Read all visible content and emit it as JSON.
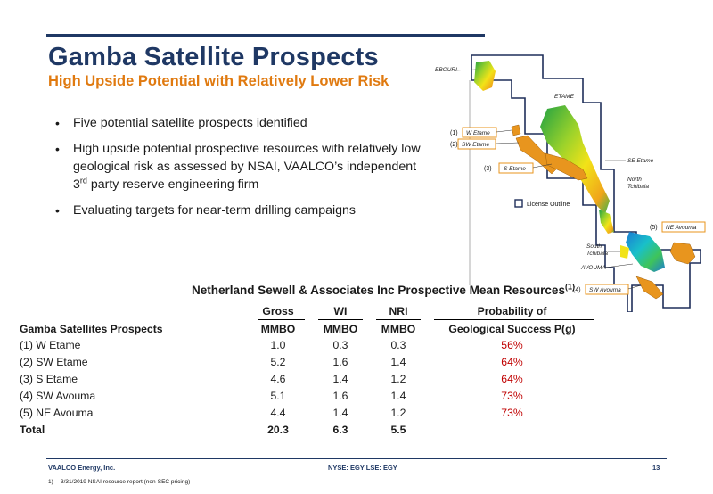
{
  "header": {
    "title": "Gamba Satellite Prospects",
    "subtitle": "High Upside Potential with Relatively Lower Risk"
  },
  "bullets": [
    "Five potential satellite prospects identified",
    "High upside potential prospective resources with relatively low geological risk as assessed by NSAI, VAALCO’s independent 3",
    "rd",
    " party reserve engineering firm",
    "Evaluating targets for near-term drilling campaigns"
  ],
  "map": {
    "labels": {
      "ebouri": "EBOURI",
      "etame": "ETAME",
      "se_etame": "SE Etame",
      "north_tchibala_1": "North",
      "north_tchibala_2": "Tchibala",
      "license_outline": "License Outline",
      "south_tchibala_1": "South",
      "south_tchibala_2": "Tchibala",
      "avouma": "AVOUMA",
      "w_etame": "W Etame",
      "sw_etame": "SW Etame",
      "s_etame": "S Etame",
      "ne_avouma": "NE Avouma",
      "sw_avouma": "SW Avouma",
      "n1": "(1)",
      "n2": "(2)",
      "n3": "(3)",
      "n4": "(4)",
      "n5": "(5)"
    },
    "colors": {
      "license_outline": "#1f2f5a",
      "prospect_fill": "#e8951e",
      "box_border": "#e8951e"
    }
  },
  "table": {
    "title": "Netherland Sewell & Associates Inc Prospective Mean Resources",
    "title_sup": "(1)",
    "headers_top": {
      "gross": "Gross",
      "wi": "WI",
      "nri": "NRI",
      "prob": "Probability of"
    },
    "headers": {
      "name": "Gamba Satellites Prospects",
      "gross": "MMBO",
      "wi": "MMBO",
      "nri": "MMBO",
      "prob": "Geological Success P(g)"
    },
    "rows": [
      {
        "name": "(1) W Etame",
        "gross": "1.0",
        "wi": "0.3",
        "nri": "0.3",
        "prob": "56%"
      },
      {
        "name": "(2) SW Etame",
        "gross": "5.2",
        "wi": "1.6",
        "nri": "1.4",
        "prob": "64%"
      },
      {
        "name": "(3) S Etame",
        "gross": "4.6",
        "wi": "1.4",
        "nri": "1.2",
        "prob": "64%"
      },
      {
        "name": "(4) SW Avouma",
        "gross": "5.1",
        "wi": "1.6",
        "nri": "1.4",
        "prob": "73%"
      },
      {
        "name": "(5) NE Avouma",
        "gross": "4.4",
        "wi": "1.4",
        "nri": "1.2",
        "prob": "73%"
      }
    ],
    "total": {
      "name": "Total",
      "gross": "20.3",
      "wi": "6.3",
      "nri": "5.5"
    }
  },
  "footer": {
    "company": "VAALCO Energy, Inc.",
    "tickers": "NYSE: EGY   LSE: EGY",
    "page": "13",
    "footnote_num": "1)",
    "footnote_text": "3/31/2019 NSAI resource report (non-SEC pricing)"
  }
}
